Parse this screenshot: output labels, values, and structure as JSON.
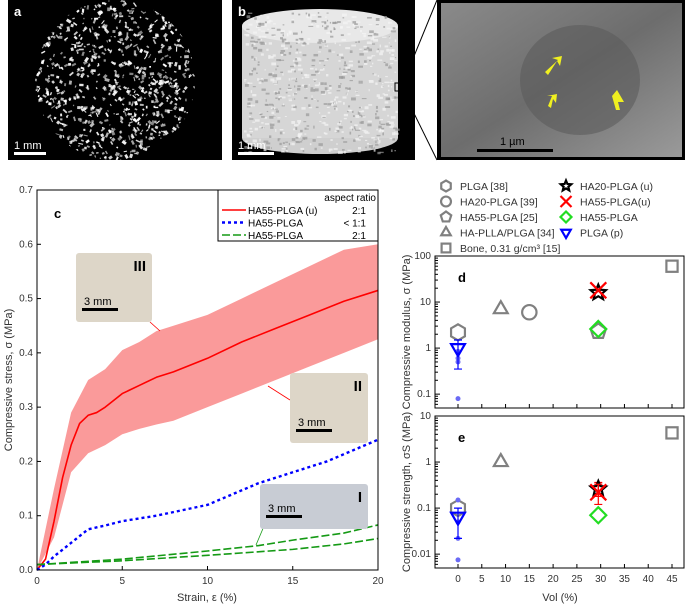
{
  "panels": {
    "a": {
      "label": "a",
      "scale_bar": "1 mm"
    },
    "b": {
      "label": "b",
      "scale_bar": "1 mm"
    },
    "inset": {
      "scale_bar": "1 µm",
      "arrow_color": "#f0f020"
    }
  },
  "chart_data": [
    {
      "panel": "c",
      "type": "line",
      "xlabel": "Strain, ε (%)",
      "ylabel": "Compressive stress, σ (MPa)",
      "xlim": [
        0,
        20
      ],
      "ylim": [
        0,
        0.7
      ],
      "xticks": [
        "0",
        "5",
        "10",
        "15",
        "20"
      ],
      "yticks": [
        "0.0",
        "0.1",
        "0.2",
        "0.3",
        "0.4",
        "0.5",
        "0.6",
        "0.7"
      ],
      "legend_header": "aspect ratio",
      "legend_position": "top-right",
      "photos": [
        {
          "label": "III",
          "scale": "3 mm",
          "at": [
            6.5,
            0.43
          ]
        },
        {
          "label": "II",
          "scale": "3 mm",
          "at": [
            14.5,
            0.335
          ]
        },
        {
          "label": "I",
          "scale": "3 mm",
          "at": [
            13,
            0.045
          ]
        }
      ],
      "series": [
        {
          "name": "HA55-PLGA (u)",
          "ratio": "2:1",
          "color": "#ff0000",
          "style": "solid",
          "x": [
            0,
            0.5,
            1,
            1.5,
            2,
            2.5,
            3,
            3.5,
            4,
            5,
            6,
            7,
            8,
            10,
            12,
            14,
            16,
            18,
            20
          ],
          "y": [
            0,
            0.02,
            0.09,
            0.17,
            0.23,
            0.27,
            0.285,
            0.29,
            0.3,
            0.325,
            0.34,
            0.355,
            0.365,
            0.39,
            0.42,
            0.445,
            0.47,
            0.495,
            0.515
          ],
          "band": {
            "color": "#fa9a9a",
            "x": [
              0,
              1,
              2,
              3,
              4,
              5,
              6,
              7,
              8,
              10,
              12,
              14,
              16,
              18,
              20
            ],
            "upper": [
              0,
              0.15,
              0.29,
              0.35,
              0.37,
              0.405,
              0.42,
              0.44,
              0.45,
              0.47,
              0.5,
              0.53,
              0.56,
              0.59,
              0.6
            ],
            "lower": [
              0,
              0.06,
              0.18,
              0.215,
              0.23,
              0.25,
              0.26,
              0.268,
              0.275,
              0.3,
              0.325,
              0.35,
              0.375,
              0.4,
              0.425
            ]
          }
        },
        {
          "name": "HA55-PLGA",
          "ratio": "< 1:1",
          "color": "#0000ff",
          "style": "dotted",
          "x": [
            0,
            0.5,
            1,
            2,
            3,
            4,
            5,
            7,
            10,
            13,
            15,
            17,
            20
          ],
          "y": [
            0,
            0.01,
            0.025,
            0.05,
            0.075,
            0.082,
            0.09,
            0.1,
            0.12,
            0.16,
            0.18,
            0.2,
            0.24
          ]
        },
        {
          "name": "HA55-PLGA",
          "ratio": "2:1",
          "color": "#159a15",
          "style": "dashed",
          "x": [
            0,
            5,
            10,
            13,
            15,
            18,
            20
          ],
          "y": [
            0.01,
            0.02,
            0.035,
            0.045,
            0.055,
            0.068,
            0.083
          ],
          "x2": [
            0,
            5,
            10,
            15,
            18,
            20
          ],
          "y2": [
            0.01,
            0.017,
            0.027,
            0.038,
            0.048,
            0.058
          ]
        }
      ]
    },
    {
      "panel": "d",
      "type": "scatter",
      "ylabel": "Compressive modulus, σ (MPa)",
      "yscale": "log",
      "ylim": [
        0.05,
        100
      ],
      "yticks": [
        "0.1",
        "1",
        "10",
        "100"
      ],
      "xlim": [
        -2,
        47
      ],
      "points": [
        {
          "series": 0,
          "x": 0,
          "y": 2.2
        },
        {
          "series": 1,
          "x": 15,
          "y": 6
        },
        {
          "series": 2,
          "x": 29.5,
          "y": 2.3
        },
        {
          "series": 3,
          "x": 9,
          "y": 7
        },
        {
          "series": 4,
          "x": 45,
          "y": 60
        },
        {
          "series": 5,
          "x": 29.5,
          "y": 16
        },
        {
          "series": 6,
          "x": 29.5,
          "y": 18
        },
        {
          "series": 7,
          "x": 29.5,
          "y": 2.6
        },
        {
          "series": 8,
          "x": 0,
          "y": 1.0,
          "err": [
            0.35,
            1.5
          ],
          "raw": [
            0.08,
            0.5,
            0.6,
            0.85
          ]
        }
      ]
    },
    {
      "panel": "e",
      "type": "scatter",
      "ylabel": "Compressive strength, σS (MPa)",
      "xlabel": "Vol (%)",
      "yscale": "log",
      "ylim": [
        0.005,
        10
      ],
      "yticks": [
        "0.01",
        "0.1",
        "1",
        "10"
      ],
      "xticks": [
        "0",
        "5",
        "10",
        "15",
        "20",
        "25",
        "30",
        "35",
        "40",
        "45"
      ],
      "xlim": [
        -2,
        47
      ],
      "points": [
        {
          "series": 0,
          "x": 0,
          "y": 0.1
        },
        {
          "series": 3,
          "x": 9,
          "y": 1.0
        },
        {
          "series": 4,
          "x": 45,
          "y": 4.3
        },
        {
          "series": 5,
          "x": 29.5,
          "y": 0.26,
          "err": [
            0.18,
            0.36
          ]
        },
        {
          "series": 6,
          "x": 29.5,
          "y": 0.22,
          "err": [
            0.12,
            0.33
          ]
        },
        {
          "series": 7,
          "x": 29.5,
          "y": 0.07
        },
        {
          "series": 8,
          "x": 0,
          "y": 0.065,
          "err": [
            0.022,
            0.1
          ],
          "raw": [
            0.0075,
            0.022,
            0.05,
            0.15
          ]
        }
      ]
    }
  ],
  "scatter_legend": [
    {
      "name": "PLGA [38]",
      "marker": "hexagon",
      "color": "#808080"
    },
    {
      "name": "HA20-PLGA [39]",
      "marker": "circle",
      "color": "#808080"
    },
    {
      "name": "HA55-PLGA [25]",
      "marker": "pentagon",
      "color": "#808080"
    },
    {
      "name": "HA-PLLA/PLGA [34]",
      "marker": "triangle",
      "color": "#808080"
    },
    {
      "name": "Bone, 0.31 g/cm³ [15]",
      "marker": "square",
      "color": "#808080"
    },
    {
      "name": "HA20-PLGA (u)",
      "marker": "star",
      "color": "#000000"
    },
    {
      "name": "HA55-PLGA(u)",
      "marker": "x",
      "color": "#ff0000"
    },
    {
      "name": "HA55-PLGA",
      "marker": "diamond",
      "color": "#22dd22"
    },
    {
      "name": "PLGA (p)",
      "marker": "triangle-down",
      "color": "#0000ff"
    }
  ]
}
